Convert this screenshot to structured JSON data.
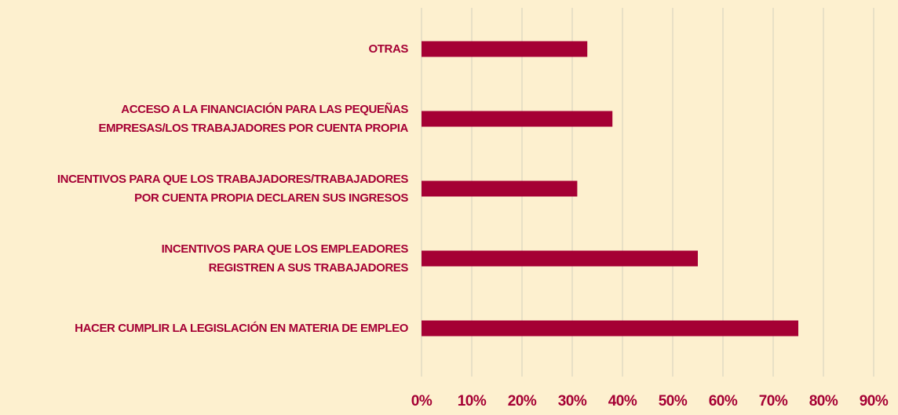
{
  "chart_data": {
    "type": "barh",
    "categories": [
      "OTRAS",
      "ACCESO A LA FINANCIACIÓN PARA LAS PEQUEÑAS\nEMPRESAS/LOS TRABAJADORES POR CUENTA PROPIA",
      "INCENTIVOS PARA QUE LOS TRABAJADORES/TRABAJADORES\nPOR CUENTA PROPIA DECLAREN SUS INGRESOS",
      "INCENTIVOS PARA QUE LOS EMPLEADORES\nREGISTREN A SUS TRABAJADORES",
      "HACER CUMPLIR LA LEGISLACIÓN EN MATERIA DE EMPLEO"
    ],
    "values": [
      33,
      38,
      31,
      55,
      75
    ],
    "color": "#a50034",
    "xlim": [
      0,
      90
    ],
    "xticks": [
      {
        "value": 0,
        "label": "0%"
      },
      {
        "value": 10,
        "label": "10%"
      },
      {
        "value": 20,
        "label": "20%"
      },
      {
        "value": 30,
        "label": "30%"
      },
      {
        "value": 40,
        "label": "40%"
      },
      {
        "value": 50,
        "label": "50%"
      },
      {
        "value": 60,
        "label": "60%"
      },
      {
        "value": 70,
        "label": "70%"
      },
      {
        "value": 80,
        "label": "80%"
      },
      {
        "value": 90,
        "label": "90%"
      }
    ],
    "grid": true
  }
}
